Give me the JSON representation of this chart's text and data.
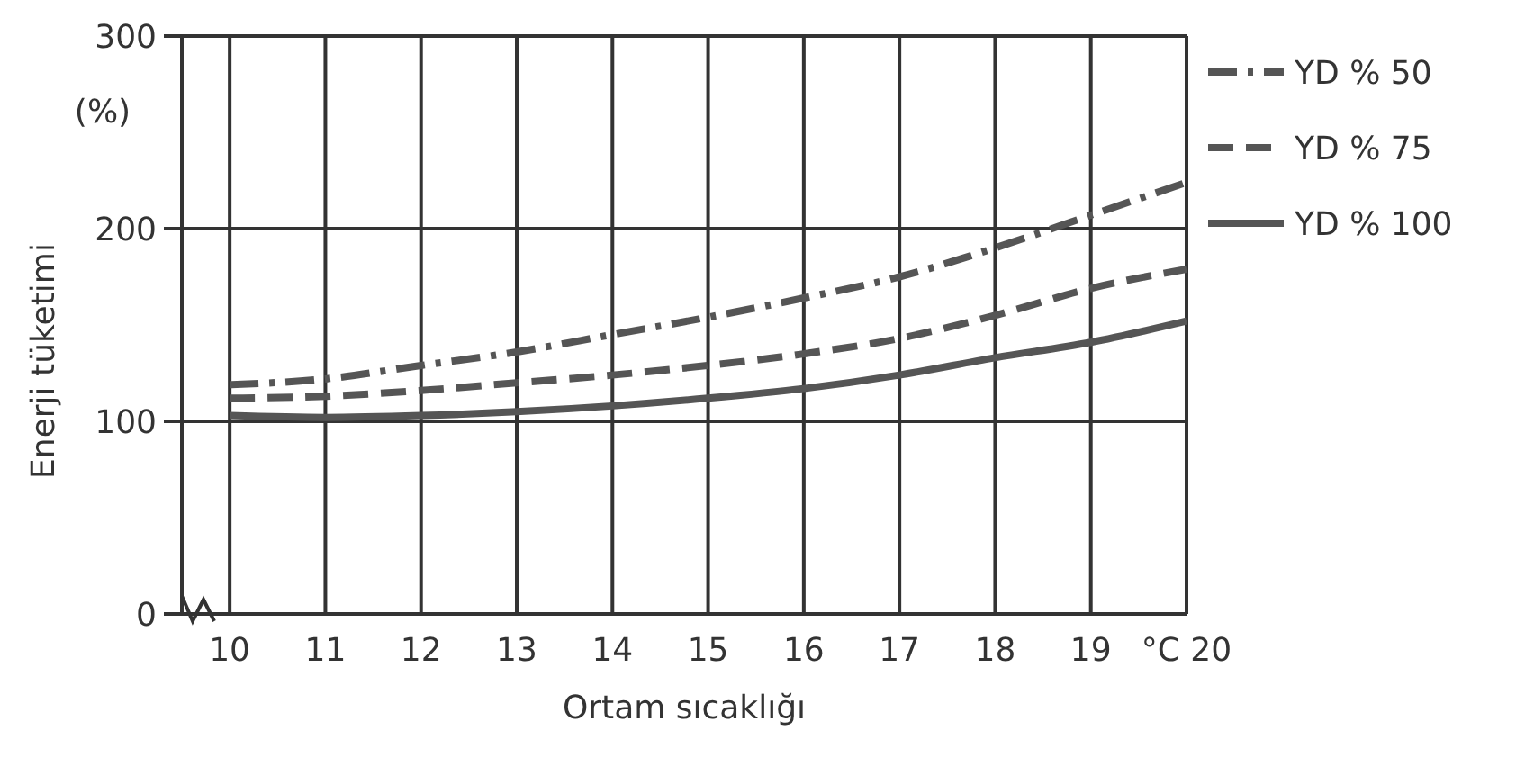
{
  "chart_data": {
    "type": "line",
    "xlabel": "Ortam sıcaklığı",
    "ylabel": "Enerji tüketimi",
    "annotations": [
      "(%)"
    ],
    "x": [
      10,
      11,
      12,
      13,
      14,
      15,
      16,
      17,
      18,
      19,
      20
    ],
    "xlim": [
      9.5,
      20
    ],
    "xticks": [
      10,
      11,
      12,
      13,
      14,
      15,
      16,
      17,
      18,
      19,
      {
        "value": 20,
        "label": "°C 20"
      }
    ],
    "ylim": [
      0,
      300
    ],
    "yticks": [
      0,
      100,
      200,
      300
    ],
    "grid": true,
    "legend": "right",
    "marker": "none",
    "series": [
      {
        "name": "YD % 50",
        "color": "#555555",
        "line_style": "dashdot",
        "values": [
          119,
          122,
          129,
          136,
          145,
          154,
          164,
          175,
          190,
          207,
          224
        ]
      },
      {
        "name": "YD % 75",
        "color": "#555555",
        "line_style": "dashed",
        "values": [
          112,
          113,
          116,
          120,
          124,
          129,
          135,
          143,
          155,
          169,
          179
        ]
      },
      {
        "name": "YD % 100",
        "color": "#555555",
        "line_style": "solid",
        "values": [
          103,
          102,
          103,
          105,
          108,
          112,
          117,
          124,
          133,
          141,
          152
        ]
      }
    ]
  }
}
